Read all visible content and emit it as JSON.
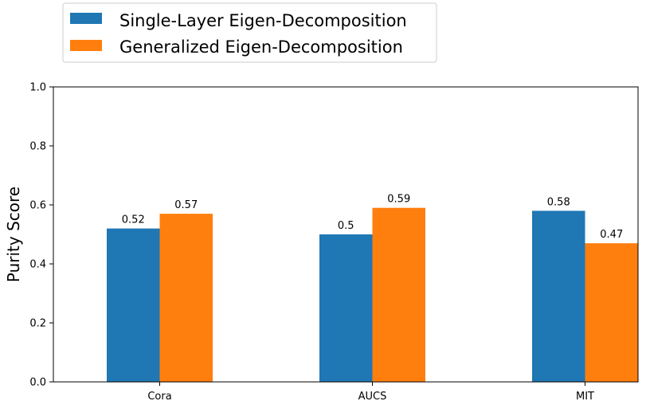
{
  "chart_data": {
    "type": "bar",
    "categories": [
      "Cora",
      "AUCS",
      "MIT"
    ],
    "series": [
      {
        "name": "Single-Layer Eigen-Decomposition",
        "color": "#1f77b4",
        "values": [
          0.52,
          0.5,
          0.58
        ]
      },
      {
        "name": "Generalized Eigen-Decomposition",
        "color": "#ff7f0e",
        "values": [
          0.57,
          0.59,
          0.47
        ]
      }
    ],
    "bar_labels": [
      [
        "0.52",
        "0.5",
        "0.58"
      ],
      [
        "0.57",
        "0.59",
        "0.47"
      ]
    ],
    "ylabel": "Purity Score",
    "ylim": [
      0,
      1.0
    ],
    "yticks": [
      0.0,
      0.2,
      0.4,
      0.6,
      0.8,
      1.0
    ],
    "ytick_labels": [
      "0.0",
      "0.2",
      "0.4",
      "0.6",
      "0.8",
      "1.0"
    ],
    "grid": false,
    "legend_position": "top-left, above plot"
  }
}
